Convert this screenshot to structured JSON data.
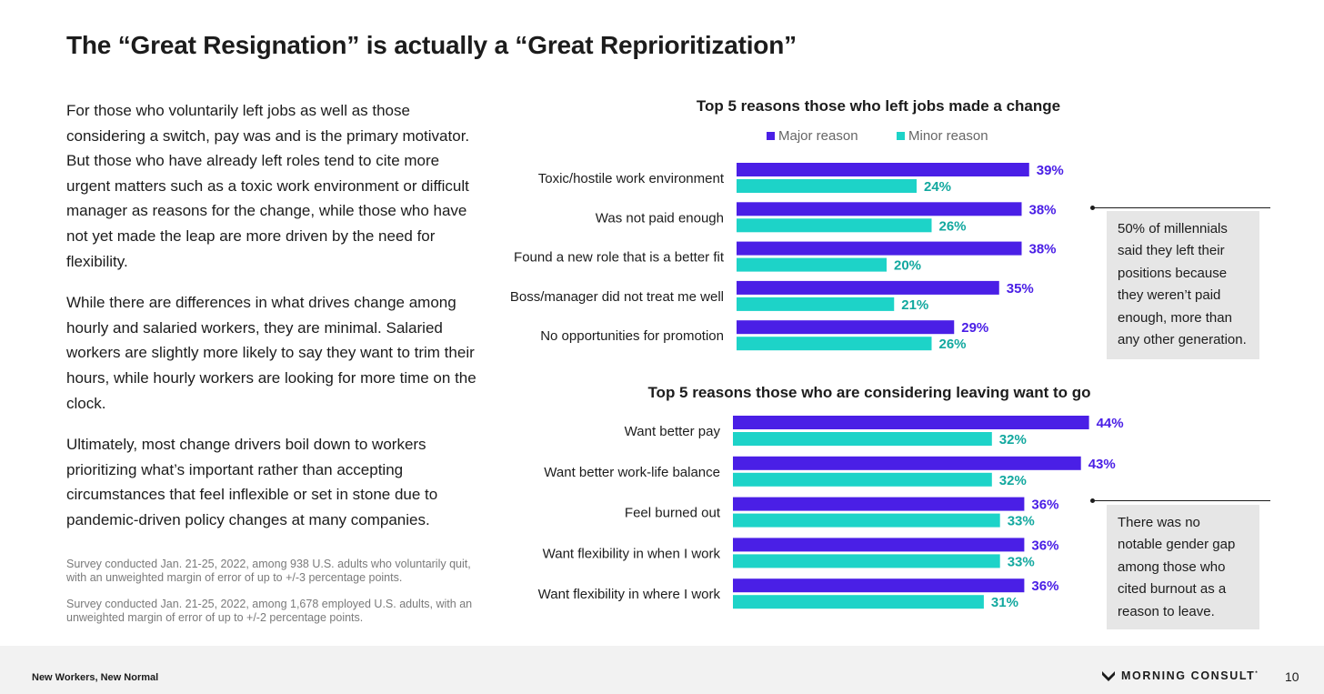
{
  "title": "The “Great Resignation” is actually a “Great Reprioritization”",
  "paragraphs": [
    "For those who voluntarily left jobs as well as those considering a switch, pay was and is the primary motivator. But those who have already left roles tend to cite more urgent matters such as a toxic work environment or difficult manager as reasons for the change, while those who have not yet made the leap are more driven by the need for flexibility.",
    "While there are differences in what drives change among hourly and salaried workers, they are minimal. Salaried workers are slightly more likely to say they want to trim their hours, while hourly workers are looking for more time on the clock.",
    "Ultimately, most change drivers boil down to workers prioritizing what’s important rather than accepting circumstances that feel inflexible or set in stone due to pandemic-driven policy changes at many companies."
  ],
  "notes": [
    "Survey conducted Jan. 21-25, 2022, among 938 U.S. adults who voluntarily quit, with an unweighted margin of error of up to +/-3 percentage points.",
    "Survey conducted Jan. 21-25, 2022, among 1,678 employed U.S. adults, with an unweighted margin of error of up to +/-2 percentage points."
  ],
  "callouts": [
    "50% of millennials said they left their positions because they weren’t paid enough, more than any other generation.",
    "There was no notable gender gap among those who cited burnout as a reason to leave."
  ],
  "footer": {
    "left": "New Workers, New Normal",
    "brand": "MORNING CONSULT",
    "trademark": "*",
    "page": "10"
  },
  "colors": {
    "major": "#4a1fe6",
    "minor": "#1dd3c8",
    "major_label": "#4a1fe6",
    "minor_label": "#12a89f",
    "callout_bg": "#e6e6e6"
  },
  "chart_data": [
    {
      "type": "bar",
      "orientation": "horizontal",
      "title": "Top 5 reasons those who left jobs made a change",
      "categories": [
        "Toxic/hostile work environment",
        "Was not paid enough",
        "Found a new role that is a better fit",
        "Boss/manager did not treat me well",
        "No opportunities for promotion"
      ],
      "series": [
        {
          "name": "Major reason",
          "values": [
            39,
            38,
            38,
            35,
            29
          ]
        },
        {
          "name": "Minor reason",
          "values": [
            24,
            26,
            20,
            21,
            26
          ]
        }
      ],
      "value_suffix": "%",
      "xlim": [
        0,
        50
      ],
      "legend": "top-center"
    },
    {
      "type": "bar",
      "orientation": "horizontal",
      "title": "Top 5 reasons those who are considering leaving want to go",
      "categories": [
        "Want better pay",
        "Want better work-life balance",
        "Feel burned out",
        "Want flexibility in when I work",
        "Want flexibility in where I work"
      ],
      "series": [
        {
          "name": "Major reason",
          "values": [
            44,
            43,
            36,
            36,
            36
          ]
        },
        {
          "name": "Minor reason",
          "values": [
            32,
            32,
            33,
            33,
            31
          ]
        }
      ],
      "value_suffix": "%",
      "xlim": [
        0,
        50
      ]
    }
  ]
}
